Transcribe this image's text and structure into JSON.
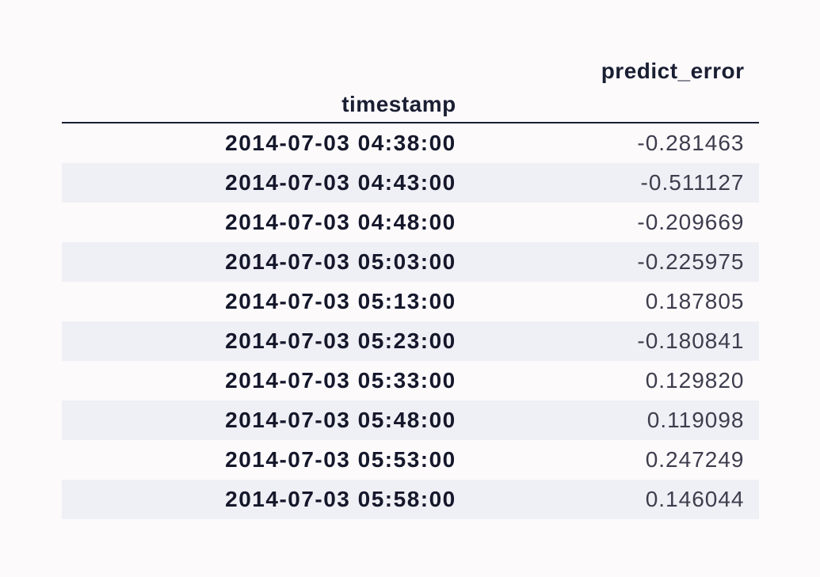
{
  "table": {
    "type": "table",
    "index_label": "timestamp",
    "columns": [
      "predict_error"
    ],
    "rows": [
      {
        "timestamp": "2014-07-03 04:38:00",
        "predict_error": "-0.281463"
      },
      {
        "timestamp": "2014-07-03 04:43:00",
        "predict_error": "-0.511127"
      },
      {
        "timestamp": "2014-07-03 04:48:00",
        "predict_error": "-0.209669"
      },
      {
        "timestamp": "2014-07-03 05:03:00",
        "predict_error": "-0.225975"
      },
      {
        "timestamp": "2014-07-03 05:13:00",
        "predict_error": "0.187805"
      },
      {
        "timestamp": "2014-07-03 05:23:00",
        "predict_error": "-0.180841"
      },
      {
        "timestamp": "2014-07-03 05:33:00",
        "predict_error": "0.129820"
      },
      {
        "timestamp": "2014-07-03 05:48:00",
        "predict_error": "0.119098"
      },
      {
        "timestamp": "2014-07-03 05:53:00",
        "predict_error": "0.247249"
      },
      {
        "timestamp": "2014-07-03 05:58:00",
        "predict_error": "0.146044"
      }
    ],
    "header_font_weight": "bold",
    "header_color": "#1a1f33",
    "index_font_weight": "bold",
    "index_color": "#15182b",
    "value_color": "#3d3d4d",
    "row_colors": {
      "odd": "#fdfafc",
      "even": "#eff0f5"
    },
    "border_color": "#1a1f33",
    "font_size_pt": 21,
    "background_color": "#fdfafc"
  }
}
